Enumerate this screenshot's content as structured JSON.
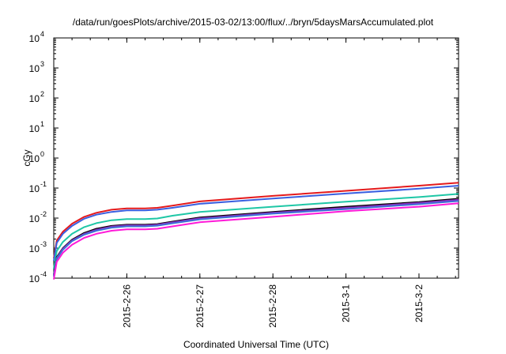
{
  "chart_data": {
    "type": "line",
    "title": "/data/run/goesPlots/archive/2015-03-02/13:00/flux/../bryn/5daysMarsAccumulated.plot",
    "xlabel": "Coordinated Universal Time (UTC)",
    "ylabel": "cGy",
    "y_scale": "log",
    "ylim": [
      0.0001,
      10000
    ],
    "y_ticks": [
      {
        "base": "10",
        "exp": "-4"
      },
      {
        "base": "10",
        "exp": "-3"
      },
      {
        "base": "10",
        "exp": "-2"
      },
      {
        "base": "10",
        "exp": "-1"
      },
      {
        "base": "10",
        "exp": "0"
      },
      {
        "base": "10",
        "exp": "1"
      },
      {
        "base": "10",
        "exp": "2"
      },
      {
        "base": "10",
        "exp": "3"
      },
      {
        "base": "10",
        "exp": "4"
      }
    ],
    "xlim": [
      "2015-02-25 00:00",
      "2015-03-02 13:00"
    ],
    "x_ticks": [
      "2015-2-26",
      "2015-2-27",
      "2015-2-28",
      "2015-3-1",
      "2015-3-2"
    ],
    "grid": false,
    "x": [
      "2015-02-25 00:00",
      "2015-02-25 01:00",
      "2015-02-25 03:00",
      "2015-02-25 06:00",
      "2015-02-25 10:00",
      "2015-02-25 14:00",
      "2015-02-25 19:00",
      "2015-02-26 00:00",
      "2015-02-26 06:00",
      "2015-02-26 10:00",
      "2015-02-26 15:00",
      "2015-02-27 00:00",
      "2015-02-28 00:00",
      "2015-03-01 00:00",
      "2015-03-02 00:00",
      "2015-03-02 13:00"
    ],
    "series": [
      {
        "color": "#e41a1c",
        "values": [
          0.00045,
          0.0018,
          0.0035,
          0.0065,
          0.011,
          0.015,
          0.019,
          0.021,
          0.021,
          0.022,
          0.026,
          0.036,
          0.055,
          0.081,
          0.12,
          0.15
        ]
      },
      {
        "color": "#3a5fe0",
        "values": [
          0.00038,
          0.0015,
          0.003,
          0.0055,
          0.0095,
          0.013,
          0.016,
          0.018,
          0.018,
          0.019,
          0.022,
          0.03,
          0.045,
          0.066,
          0.095,
          0.12
        ]
      },
      {
        "color": "#1ec7a6",
        "values": [
          0.0002,
          0.0008,
          0.0016,
          0.003,
          0.005,
          0.0068,
          0.0085,
          0.0093,
          0.0093,
          0.0097,
          0.012,
          0.016,
          0.024,
          0.035,
          0.05,
          0.064
        ]
      },
      {
        "color": "#000000",
        "values": [
          0.00013,
          0.0005,
          0.001,
          0.0019,
          0.0032,
          0.0044,
          0.0055,
          0.006,
          0.006,
          0.0063,
          0.0076,
          0.0105,
          0.016,
          0.024,
          0.034,
          0.044
        ]
      },
      {
        "color": "#8e2ec2",
        "values": [
          0.00012,
          0.00047,
          0.00095,
          0.0018,
          0.003,
          0.0041,
          0.0052,
          0.0057,
          0.0057,
          0.006,
          0.0072,
          0.0098,
          0.015,
          0.022,
          0.032,
          0.041
        ]
      },
      {
        "color": "#3b6fd6",
        "values": [
          0.00011,
          0.00043,
          0.00088,
          0.0017,
          0.0028,
          0.0038,
          0.0048,
          0.0053,
          0.0053,
          0.0056,
          0.0067,
          0.0091,
          0.014,
          0.02,
          0.029,
          0.037
        ]
      },
      {
        "color": "#ff19d8",
        "values": [
          9e-05,
          0.00035,
          0.0007,
          0.0013,
          0.0022,
          0.003,
          0.0038,
          0.0042,
          0.0042,
          0.0044,
          0.0053,
          0.0073,
          0.011,
          0.017,
          0.024,
          0.031
        ]
      }
    ]
  }
}
